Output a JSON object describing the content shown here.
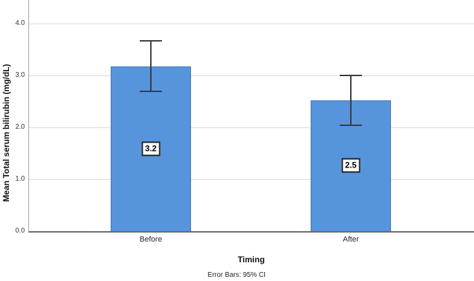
{
  "chart_data": {
    "type": "bar",
    "title": "",
    "categories": [
      "Before",
      "After"
    ],
    "values": [
      3.17,
      2.52
    ],
    "value_labels": [
      "3.2",
      "2.5"
    ],
    "error_bars_95ci": [
      [
        2.69,
        3.66
      ],
      [
        2.04,
        2.99
      ]
    ],
    "xlabel": "Timing",
    "ylabel": "Mean Total serum bilirubin (mg/dL)",
    "y_ticks": [
      "0.0",
      "1.0",
      "2.0",
      "3.0",
      "4.0"
    ],
    "ylim": [
      0.0,
      4.45
    ],
    "grid": "horizontal",
    "legend": "none",
    "footnote": "Error Bars: 95% CI",
    "colors": {
      "bar_fill": "#5694DC",
      "bar_border": "#4478BE",
      "error_bar": "#3a3a3a",
      "gridline": "#d9d9d9",
      "y_axis_line": "#a3a3a3",
      "x_axis_line": "#686868"
    }
  }
}
